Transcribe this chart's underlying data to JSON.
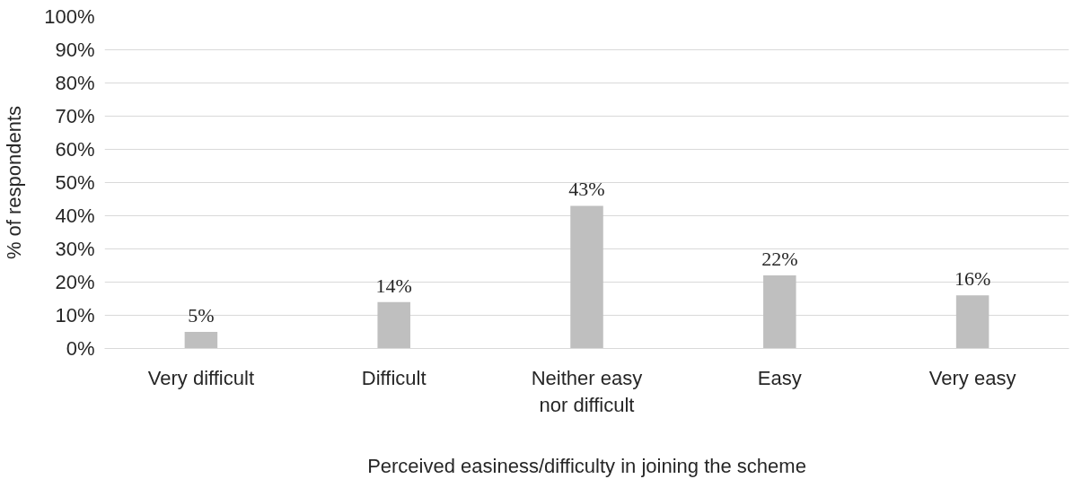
{
  "chart_data": {
    "type": "bar",
    "xlabel": "Perceived easiness/difficulty in joining the scheme",
    "ylabel": "% of respondents",
    "categories": [
      "Very difficult",
      "Difficult",
      "Neither easy nor difficult",
      "Easy",
      "Very easy"
    ],
    "values": [
      5,
      14,
      43,
      22,
      16
    ],
    "value_labels": [
      "5%",
      "14%",
      "43%",
      "22%",
      "16%"
    ],
    "color": "#bfbfbf",
    "ylim": [
      0,
      100
    ],
    "yticks": [
      {
        "value": 0,
        "label": "0%"
      },
      {
        "value": 10,
        "label": "10%"
      },
      {
        "value": 20,
        "label": "20%"
      },
      {
        "value": 30,
        "label": "30%"
      },
      {
        "value": 40,
        "label": "40%"
      },
      {
        "value": 50,
        "label": "50%"
      },
      {
        "value": 60,
        "label": "60%"
      },
      {
        "value": 70,
        "label": "70%"
      },
      {
        "value": 80,
        "label": "80%"
      },
      {
        "value": 90,
        "label": "90%"
      },
      {
        "value": 100,
        "label": "100%"
      }
    ],
    "grid": "y"
  }
}
